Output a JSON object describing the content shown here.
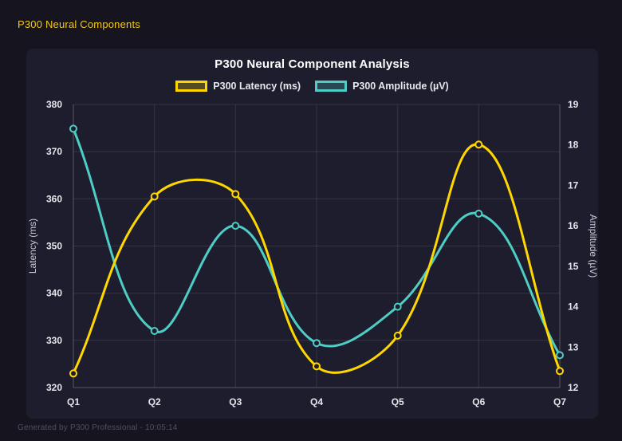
{
  "page": {
    "header_title": "P300 Neural Components",
    "footer_text": "Generated by P300 Professional - 10:05:14"
  },
  "colors": {
    "page_bg": "#16151f",
    "card_bg": "#1e1d2e",
    "header_text": "#f2c71d",
    "title_text": "#ffffff",
    "tick_text": "#e6e6ec",
    "axis_title_text": "#c9c9d4",
    "footer_text": "#50505e",
    "grid": "rgba(255,255,255,0.10)",
    "axis_border": "rgba(255,255,255,0.18)",
    "latency_color": "#ffd700",
    "amplitude_color": "#4ecdc4"
  },
  "chart_data": {
    "type": "line",
    "title": "P300 Neural Component Analysis",
    "categories": [
      "Q1",
      "Q2",
      "Q3",
      "Q4",
      "Q5",
      "Q6",
      "Q7"
    ],
    "series": [
      {
        "name": "P300 Latency (ms)",
        "axis": "left",
        "color": "#ffd700",
        "values": [
          323,
          360.5,
          361,
          324.5,
          331,
          371.5,
          323.5
        ]
      },
      {
        "name": "P300 Amplitude (µV)",
        "axis": "right",
        "color": "#4ecdc4",
        "values": [
          18.4,
          13.4,
          16,
          13.1,
          14,
          16.3,
          12.8
        ]
      }
    ],
    "y_left": {
      "label": "Latency (ms)",
      "min": 320,
      "max": 380,
      "ticks": [
        380,
        370,
        360,
        350,
        340,
        330,
        320
      ]
    },
    "y_right": {
      "label": "Amplitude (µV)",
      "min": 12,
      "max": 19,
      "ticks": [
        19,
        18,
        17,
        16,
        15,
        14,
        13,
        12
      ]
    },
    "legend_position": "top",
    "grid": true,
    "line_tension": 0.4,
    "point_radius": 4
  }
}
